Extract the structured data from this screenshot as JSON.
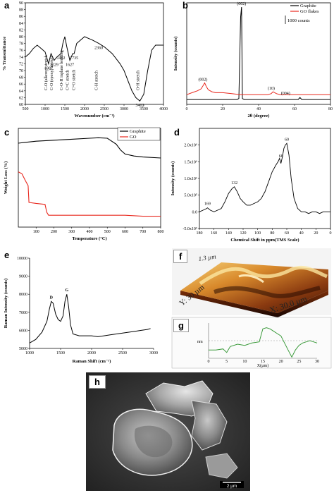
{
  "panel_labels": {
    "a": "a",
    "b": "b",
    "c": "c",
    "d": "d",
    "e": "e",
    "f": "f",
    "g": "g",
    "h": "h"
  },
  "afm": {
    "z_label": "1.3 µm",
    "y_label": "Y: 30 µm",
    "x_label": "X: 30.0 µm"
  },
  "profile_ylabel": "nm",
  "profile_xlabel": "X(µm)",
  "sem_scalebar": "2 µm",
  "chart_data": [
    {
      "id": "a",
      "type": "line",
      "xlabel": "Wavenumber (cm⁻¹)",
      "ylabel": "% Transmittance",
      "xlim": [
        4000,
        500
      ],
      "ylim": [
        60,
        90
      ],
      "xticks": [
        500,
        1000,
        1500,
        2000,
        2500,
        3000,
        3500,
        4000
      ],
      "yticks": [
        60,
        62,
        64,
        66,
        68,
        70,
        72,
        74,
        76,
        78,
        80,
        82,
        84,
        86,
        88,
        90
      ],
      "x": [
        500,
        600,
        700,
        800,
        900,
        1000,
        1087,
        1150,
        1229,
        1300,
        1402,
        1450,
        1500,
        1550,
        1627,
        1700,
        1735,
        1800,
        1900,
        2000,
        2100,
        2200,
        2360,
        2500,
        2700,
        2900,
        3000,
        3100,
        3200,
        3300,
        3402,
        3500,
        3600,
        3700,
        3800,
        3900,
        4000
      ],
      "y": [
        74,
        75,
        76.5,
        77.5,
        76.5,
        75.5,
        72,
        75,
        73,
        74,
        75,
        78,
        80,
        77,
        73,
        75,
        75,
        78,
        79,
        80,
        79.5,
        79,
        78,
        77,
        75,
        72,
        70,
        67,
        64,
        62,
        61,
        63,
        70,
        76,
        77.5,
        77.5,
        77.5
      ],
      "annotations": [
        {
          "x": 1087,
          "y": 72,
          "text": "1087"
        },
        {
          "x": 1229,
          "y": 73,
          "text": "1229"
        },
        {
          "x": 1402,
          "y": 75,
          "text": "1402"
        },
        {
          "x": 1627,
          "y": 73,
          "text": "1627"
        },
        {
          "x": 1735,
          "y": 75,
          "text": "1735"
        },
        {
          "x": 2360,
          "y": 78,
          "text": "2360"
        },
        {
          "x": 3402,
          "y": 61,
          "text": "3402"
        }
      ],
      "rot_annotations": [
        {
          "x": 1050,
          "text": "C-O (alkoxy) stretch"
        },
        {
          "x": 1200,
          "text": "C-O (epoxy) stretch"
        },
        {
          "x": 1450,
          "text": "C-O-H inplane bending"
        },
        {
          "x": 1600,
          "text": "C=C stretch"
        },
        {
          "x": 1760,
          "text": "C=O stretch"
        },
        {
          "x": 2330,
          "text": "C-H stretch"
        },
        {
          "x": 3380,
          "text": "O-H stretch"
        }
      ]
    },
    {
      "id": "b",
      "type": "line",
      "xlabel": "2θ (degree)",
      "ylabel": "Intensity (counts)",
      "xlim": [
        0,
        80
      ],
      "ylim": [
        0,
        100
      ],
      "xticks": [
        0,
        20,
        40,
        60,
        80
      ],
      "scale_bar": "1000 counts",
      "series": [
        {
          "name": "Graphite",
          "color": "#000000",
          "x": [
            0,
            5,
            10,
            15,
            20,
            25,
            28,
            29,
            30,
            30.5,
            31,
            32,
            35,
            40,
            45,
            50,
            52,
            55,
            60,
            62,
            63,
            64,
            65,
            70,
            75,
            80
          ],
          "y": [
            5,
            5,
            5,
            5,
            5,
            5,
            5,
            6,
            90,
            100,
            6,
            5,
            5,
            5,
            5,
            5,
            5,
            5,
            5,
            5,
            7,
            5,
            5,
            5,
            5,
            5
          ]
        },
        {
          "name": "GO flakes",
          "color": "#e8281e",
          "x": [
            0,
            3,
            6,
            8,
            9,
            10,
            11,
            12,
            14,
            16,
            20,
            25,
            30,
            35,
            40,
            45,
            47,
            48,
            49,
            50,
            52,
            55,
            60,
            65,
            70,
            75,
            80
          ],
          "y": [
            10,
            12,
            14,
            16,
            19,
            22,
            18,
            15,
            13,
            12,
            12,
            11,
            10,
            10,
            10,
            10,
            11,
            13,
            12,
            11,
            10,
            10,
            10,
            10,
            10,
            10,
            10
          ]
        }
      ],
      "annotations": [
        {
          "x": 30.5,
          "y": 100,
          "text": "(002)",
          "color": "#000000"
        },
        {
          "x": 9,
          "y": 22,
          "text": "(002)",
          "color": "#e8281e"
        },
        {
          "x": 47,
          "y": 13,
          "text": "(10)",
          "color": "#e8281e"
        },
        {
          "x": 55,
          "y": 8,
          "text": "(004)",
          "color": "#000000"
        }
      ]
    },
    {
      "id": "c",
      "type": "line",
      "xlabel": "Temperature (°C)",
      "ylabel": "Weight Loss (%)",
      "xlim": [
        0,
        800
      ],
      "ylim": [
        0,
        100
      ],
      "xticks": [
        100,
        200,
        300,
        400,
        500,
        600,
        700,
        800
      ],
      "series": [
        {
          "name": "Graphite",
          "color": "#000000",
          "x": [
            0,
            50,
            100,
            200,
            300,
            400,
            450,
            500,
            550,
            575,
            600,
            650,
            700,
            800
          ],
          "y": [
            85,
            86,
            87,
            88,
            89,
            90,
            90.5,
            90,
            84,
            78,
            74,
            72,
            71,
            70
          ]
        },
        {
          "name": "GO",
          "color": "#e8281e",
          "x": [
            0,
            20,
            40,
            55,
            60,
            100,
            150,
            160,
            170,
            200,
            300,
            400,
            500,
            600,
            700,
            800
          ],
          "y": [
            56,
            54,
            47,
            42,
            25,
            24,
            23,
            15,
            12,
            12,
            12,
            12,
            12,
            12,
            11,
            11
          ]
        }
      ]
    },
    {
      "id": "d",
      "type": "line",
      "xlabel": "Chemical Shift in ppm(TMS Scale)",
      "ylabel": "Intensity (counts)",
      "xlim": [
        180,
        0
      ],
      "ylim": [
        -0.5,
        2.5
      ],
      "xticks": [
        180,
        160,
        140,
        120,
        100,
        80,
        60,
        40,
        20,
        0
      ],
      "yticks": [
        -0.5,
        0.0,
        0.5,
        1.0,
        1.5,
        2.0
      ],
      "ytick_labels": [
        "-5.0x10⁵",
        "0.0",
        "5.0x10⁵",
        "1.0x10⁶",
        "1.5x10⁶",
        "2.0x10⁶"
      ],
      "x": [
        180,
        175,
        170,
        169,
        165,
        160,
        155,
        150,
        145,
        140,
        135,
        132,
        128,
        124,
        120,
        115,
        110,
        105,
        100,
        95,
        90,
        85,
        80,
        75,
        72,
        70,
        68,
        66,
        64,
        62,
        60,
        57,
        54,
        50,
        45,
        40,
        35,
        30,
        25,
        20,
        15,
        10,
        5,
        0
      ],
      "y": [
        0.0,
        0.05,
        0.1,
        0.12,
        0.05,
        0.0,
        0.05,
        0.1,
        0.3,
        0.55,
        0.7,
        0.75,
        0.6,
        0.4,
        0.3,
        0.2,
        0.2,
        0.25,
        0.3,
        0.4,
        0.6,
        0.9,
        1.2,
        1.4,
        1.5,
        1.6,
        1.45,
        1.65,
        1.9,
        2.0,
        2.05,
        1.7,
        1.0,
        0.4,
        0.1,
        0.0,
        0.0,
        -0.05,
        0.0,
        0.0,
        -0.05,
        0.0,
        0.0,
        0.0
      ],
      "annotations": [
        {
          "x": 169,
          "y": 0.12,
          "text": "169"
        },
        {
          "x": 132,
          "y": 0.75,
          "text": "132"
        },
        {
          "x": 68,
          "y": 1.55,
          "text": "68"
        },
        {
          "x": 60,
          "y": 2.05,
          "text": "60"
        }
      ]
    },
    {
      "id": "e",
      "type": "line",
      "xlabel": "Raman Shift (cm⁻¹)",
      "ylabel": "Raman Intensity (counts)",
      "xlim": [
        1000,
        3000
      ],
      "ylim": [
        5000,
        10000
      ],
      "xticks": [
        1000,
        1500,
        2000,
        2500,
        3000
      ],
      "yticks": [
        5000,
        6000,
        7000,
        8000,
        9000,
        10000
      ],
      "x": [
        1000,
        1100,
        1200,
        1280,
        1320,
        1350,
        1380,
        1420,
        1460,
        1500,
        1540,
        1570,
        1600,
        1630,
        1660,
        1700,
        1800,
        1900,
        2000,
        2100,
        2200,
        2300,
        2400,
        2500,
        2600,
        2700,
        2800,
        2900,
        2950
      ],
      "y": [
        5300,
        5500,
        5900,
        6500,
        7200,
        7600,
        7500,
        6900,
        6600,
        6500,
        6800,
        7600,
        8000,
        7300,
        6300,
        5800,
        5700,
        5700,
        5700,
        5650,
        5700,
        5750,
        5800,
        5850,
        5900,
        5950,
        6000,
        6050,
        6100
      ],
      "annotations": [
        {
          "x": 1350,
          "y": 7600,
          "text": "D"
        },
        {
          "x": 1600,
          "y": 8000,
          "text": "G"
        }
      ]
    },
    {
      "id": "g",
      "type": "line",
      "xlim": [
        0,
        30
      ],
      "ylim": [
        -15,
        15
      ],
      "xticks": [
        0,
        5,
        10,
        15,
        20,
        25,
        30
      ],
      "x": [
        0,
        2,
        4,
        5,
        6,
        8,
        10,
        12,
        14,
        15,
        16,
        17,
        18,
        19,
        20,
        21,
        22,
        23,
        24,
        25,
        26,
        27,
        28,
        29,
        30
      ],
      "y": [
        -8,
        -8,
        -7,
        -10,
        -5,
        -3,
        -4,
        -2,
        -1,
        10,
        11,
        10,
        8,
        6,
        4,
        -2,
        -8,
        -14,
        -8,
        -4,
        -2,
        -1,
        0,
        -1,
        -2
      ]
    }
  ]
}
